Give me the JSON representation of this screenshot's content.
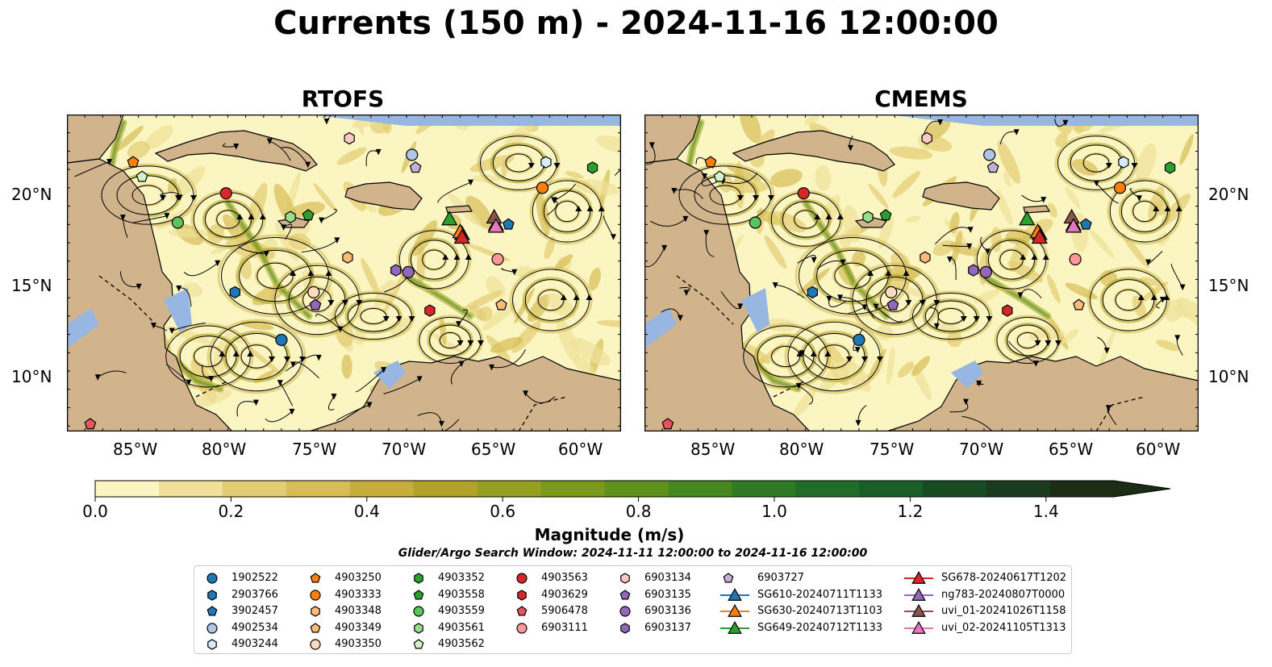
{
  "figure": {
    "title": "Currents (150 m) - 2024-11-16 12:00:00"
  },
  "panels": [
    {
      "title": "RTOFS"
    },
    {
      "title": "CMEMS"
    }
  ],
  "axes": {
    "lon_ticks": [
      "85°W",
      "80°W",
      "75°W",
      "70°W",
      "65°W",
      "60°W"
    ],
    "lat_ticks": [
      "20°N",
      "15°N",
      "10°N"
    ]
  },
  "colorbar": {
    "label": "Magnitude (m/s)",
    "ticks": [
      "0.0",
      "0.2",
      "0.4",
      "0.6",
      "0.8",
      "1.0",
      "1.2",
      "1.4"
    ],
    "range": [
      0,
      1.5
    ],
    "extend": "max",
    "colors": [
      "#fbf5c2",
      "#efe19a",
      "#e2cd74",
      "#d6bd55",
      "#c7ad3c",
      "#b1a32a",
      "#96a020",
      "#7a9a1c",
      "#5f911d",
      "#46871f",
      "#2f7b22",
      "#1f6d27",
      "#175e27",
      "#174c22",
      "#1a3b1d",
      "#1b2c17"
    ]
  },
  "search_window": "Glider/Argo Search Window: 2024-11-11 12:00:00 to 2024-11-16 12:00:00",
  "legend": {
    "items": [
      {
        "label": "1902522",
        "marker": "circle",
        "color": "#1f77b4"
      },
      {
        "label": "2903766",
        "marker": "hexagon",
        "color": "#1f77b4"
      },
      {
        "label": "3902457",
        "marker": "pentagon",
        "color": "#1f77b4"
      },
      {
        "label": "4902534",
        "marker": "circle",
        "color": "#aec7e8"
      },
      {
        "label": "4903244",
        "marker": "hexagon",
        "color": "#d6ecf9"
      },
      {
        "label": "4903250",
        "marker": "pentagon",
        "color": "#ff7f0e"
      },
      {
        "label": "4903333",
        "marker": "circle",
        "color": "#ff7f0e"
      },
      {
        "label": "4903348",
        "marker": "hexagon",
        "color": "#ffbb78"
      },
      {
        "label": "4903349",
        "marker": "pentagon",
        "color": "#ffbb78"
      },
      {
        "label": "4903350",
        "marker": "circle",
        "color": "#ffdcbc"
      },
      {
        "label": "4903352",
        "marker": "hexagon",
        "color": "#2ca02c"
      },
      {
        "label": "4903558",
        "marker": "pentagon",
        "color": "#2ca02c"
      },
      {
        "label": "4903559",
        "marker": "circle",
        "color": "#5bc45b"
      },
      {
        "label": "4903561",
        "marker": "hexagon",
        "color": "#98df8a"
      },
      {
        "label": "4903562",
        "marker": "pentagon",
        "color": "#d2f5c8"
      },
      {
        "label": "4903563",
        "marker": "circle",
        "color": "#d62728"
      },
      {
        "label": "4903629",
        "marker": "hexagon",
        "color": "#d62728"
      },
      {
        "label": "5906478",
        "marker": "pentagon",
        "color": "#e8545a"
      },
      {
        "label": "6903111",
        "marker": "circle",
        "color": "#ff9896"
      },
      {
        "label": "6903134",
        "marker": "hexagon",
        "color": "#ffc8c6"
      },
      {
        "label": "6903135",
        "marker": "pentagon",
        "color": "#9467bd"
      },
      {
        "label": "6903136",
        "marker": "circle",
        "color": "#9467bd"
      },
      {
        "label": "6903137",
        "marker": "hexagon",
        "color": "#9467bd"
      },
      {
        "label": "6903727",
        "marker": "pentagon",
        "color": "#c5b0d5"
      },
      {
        "label": "SG610-20240711T1133",
        "marker": "triangle-line",
        "color": "#1f77b4"
      },
      {
        "label": "SG630-20240713T1103",
        "marker": "triangle-line",
        "color": "#ff7f0e"
      },
      {
        "label": "SG649-20240712T1133",
        "marker": "triangle-line",
        "color": "#2ca02c"
      },
      {
        "label": "SG678-20240617T1202",
        "marker": "triangle-line",
        "color": "#d62728"
      },
      {
        "label": "ng783-20240807T0000",
        "marker": "triangle-line",
        "color": "#9467bd"
      },
      {
        "label": "uvi_01-20241026T1158",
        "marker": "triangle-line",
        "color": "#8c564b"
      },
      {
        "label": "uvi_02-20241105T1313",
        "marker": "triangle-line",
        "color": "#e377c2"
      }
    ]
  },
  "map_colors": {
    "ocean_low": "#fbf5c2",
    "land": "#d2b48c",
    "water_mask": "#97b6e2",
    "coast": "#000000"
  }
}
